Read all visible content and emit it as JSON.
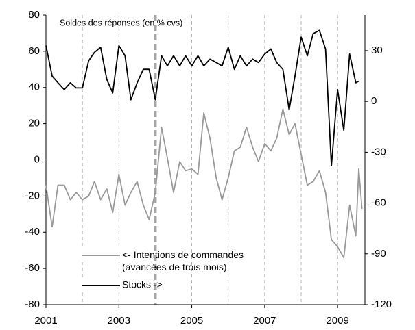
{
  "chart_data": {
    "type": "line",
    "annotation": "Soldes des réponses (en % cvs)",
    "x": [
      2001.0,
      2001.17,
      2001.33,
      2001.5,
      2001.67,
      2001.83,
      2002.0,
      2002.17,
      2002.33,
      2002.5,
      2002.67,
      2002.83,
      2003.0,
      2003.17,
      2003.33,
      2003.5,
      2003.67,
      2003.83,
      2004.0,
      2004.17,
      2004.33,
      2004.5,
      2004.67,
      2004.83,
      2005.0,
      2005.17,
      2005.33,
      2005.5,
      2005.67,
      2005.83,
      2006.0,
      2006.17,
      2006.33,
      2006.5,
      2006.67,
      2006.83,
      2007.0,
      2007.17,
      2007.33,
      2007.5,
      2007.67,
      2007.83,
      2008.0,
      2008.17,
      2008.33,
      2008.5,
      2008.67,
      2008.83,
      2009.0,
      2009.17,
      2009.33,
      2009.5,
      2009.58,
      2009.67
    ],
    "series": [
      {
        "name": "<- Intentions de commandes\n(avancées de trois mois)",
        "color": "#999999",
        "axis": "y",
        "values": [
          -14,
          -37,
          -14,
          -14,
          -22,
          -18,
          -22,
          -20,
          -12,
          -22,
          -16,
          -29,
          -8,
          -25,
          -18,
          -12,
          -25,
          -33,
          -18,
          18,
          1,
          -18,
          -1,
          -6,
          -5,
          -8,
          26,
          12,
          -10,
          -22,
          -10,
          5,
          7,
          18,
          7,
          -1,
          9,
          5,
          12,
          28,
          14,
          20,
          3,
          -14,
          -12,
          -6,
          -18,
          -44,
          -48,
          -54,
          -25,
          -42,
          -5,
          -27
        ]
      },
      {
        "name": "Stocks ->",
        "color": "#000000",
        "axis": "y2",
        "values": [
          33,
          15,
          11,
          7,
          11,
          8,
          8,
          24,
          29,
          32,
          13,
          5,
          33,
          27,
          1,
          11,
          19,
          19,
          1,
          27,
          21,
          27,
          21,
          27,
          21,
          27,
          21,
          25,
          23,
          21,
          32,
          19,
          27,
          21,
          25,
          23,
          28,
          31,
          23,
          19,
          -5,
          15,
          38,
          27,
          40,
          42,
          31,
          -38,
          7,
          -17,
          28,
          11,
          12,
          null
        ]
      }
    ],
    "xlim": [
      2001,
      2009.75
    ],
    "xticks": [
      2001,
      2003,
      2005,
      2007,
      2009
    ],
    "vlines": [
      2002,
      2003,
      2004,
      2005,
      2006,
      2007,
      2008,
      2009
    ],
    "highlight_x": 2004,
    "ylim": [
      -80,
      80
    ],
    "yticks": [
      -80,
      -60,
      -40,
      -20,
      0,
      20,
      40,
      60,
      80
    ],
    "y2lim": [
      -120,
      51
    ],
    "y2ticks": [
      -120,
      -90,
      -60,
      -30,
      0,
      30
    ]
  }
}
